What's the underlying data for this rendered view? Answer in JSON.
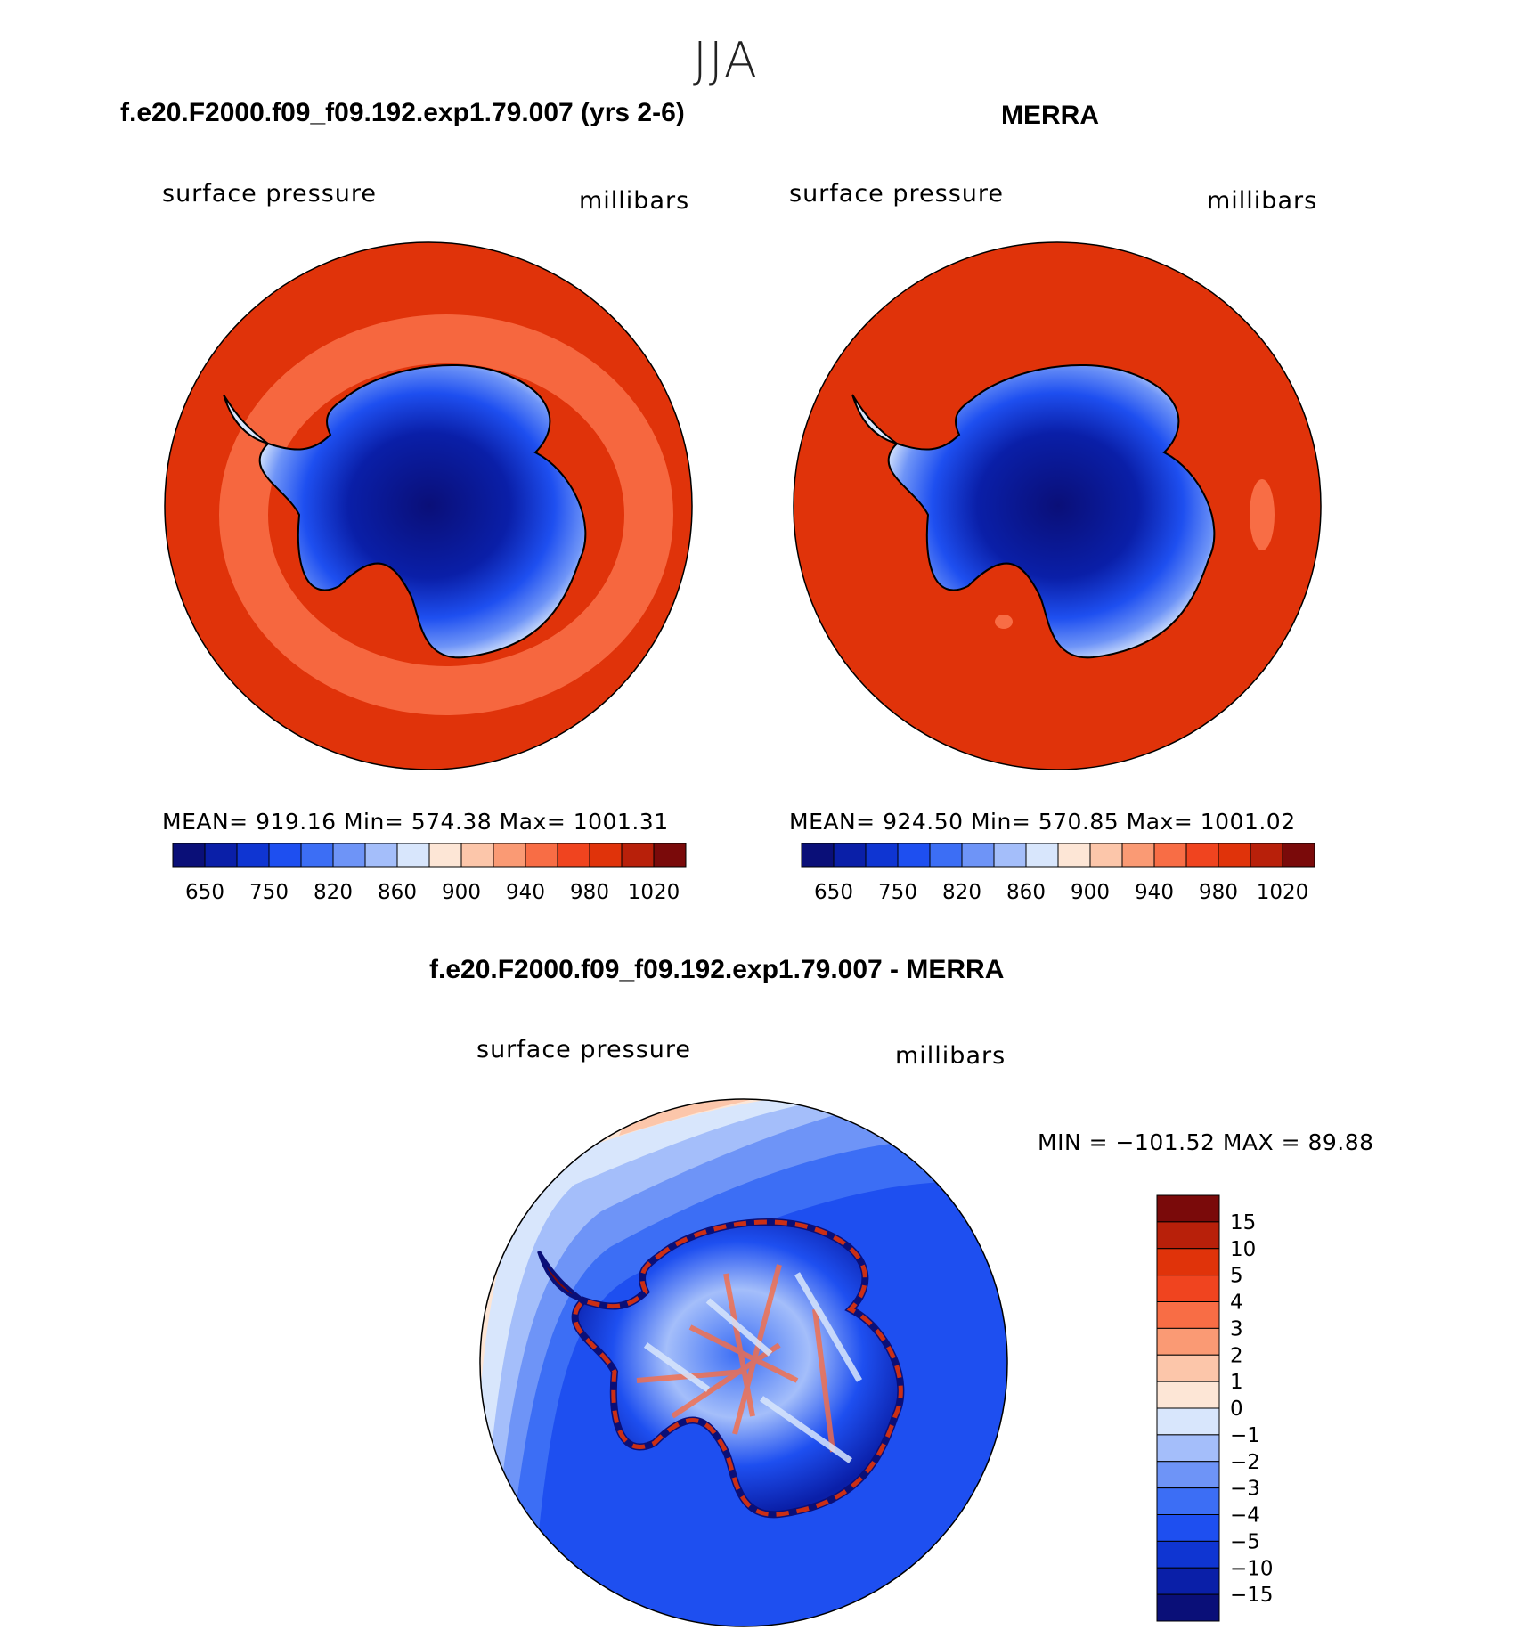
{
  "season": "JJA",
  "panels": [
    {
      "title": "f.e20.F2000.f09_f09.192.exp1.79.007 (yrs 2-6)",
      "variable": "surface pressure",
      "units": "millibars",
      "stats": "MEAN= 919.16   Min= 574.38   Max= 1001.31"
    },
    {
      "title": "MERRA",
      "variable": "surface pressure",
      "units": "millibars",
      "stats": "MEAN= 924.50   Min= 570.85   Max= 1001.02"
    }
  ],
  "diff": {
    "title": "f.e20.F2000.f09_f09.192.exp1.79.007 - MERRA",
    "variable": "surface pressure",
    "units": "millibars",
    "minmax": "MIN = −101.52 MAX =   89.88"
  },
  "colors": {
    "abs_scale": [
      "#0a0f78",
      "#0a1fa8",
      "#0f35d2",
      "#1e4ff0",
      "#3c6ef5",
      "#6e94f7",
      "#a4befa",
      "#d8e6fc",
      "#fde6d6",
      "#fcc6aa",
      "#fa9a74",
      "#f86d45",
      "#f0441f",
      "#e0330a",
      "#b8200a",
      "#7a0a0a"
    ],
    "diff_scale": [
      "#0a0f78",
      "#0a1fa8",
      "#0f35d2",
      "#1e4ff0",
      "#3c6ef5",
      "#6e94f7",
      "#a4befa",
      "#d8e6fc",
      "#fde6d6",
      "#fcc6aa",
      "#fa9a74",
      "#f86d45",
      "#f0441f",
      "#e0330a",
      "#b8200a",
      "#7a0a0a"
    ]
  },
  "chart_data": [
    {
      "type": "heatmap",
      "projection": "south polar stereographic",
      "colorbar": {
        "orientation": "horizontal",
        "tick_labels": [
          "650",
          "750",
          "820",
          "860",
          "900",
          "940",
          "980",
          "1020"
        ],
        "levels": [
          650,
          700,
          750,
          800,
          820,
          840,
          860,
          880,
          900,
          920,
          940,
          960,
          980,
          1000,
          1020
        ]
      }
    },
    {
      "type": "heatmap",
      "projection": "south polar stereographic",
      "colorbar": {
        "orientation": "horizontal",
        "tick_labels": [
          "650",
          "750",
          "820",
          "860",
          "900",
          "940",
          "980",
          "1020"
        ],
        "levels": [
          650,
          700,
          750,
          800,
          820,
          840,
          860,
          880,
          900,
          920,
          940,
          960,
          980,
          1000,
          1020
        ]
      }
    },
    {
      "type": "heatmap",
      "projection": "south polar stereographic",
      "colorbar": {
        "orientation": "vertical",
        "tick_labels": [
          "15",
          "10",
          "5",
          "4",
          "3",
          "2",
          "1",
          "0",
          "−1",
          "−2",
          "−3",
          "−4",
          "−5",
          "−10",
          "−15"
        ],
        "levels": [
          15,
          10,
          5,
          4,
          3,
          2,
          1,
          0,
          -1,
          -2,
          -3,
          -4,
          -5,
          -10,
          -15
        ]
      }
    }
  ]
}
